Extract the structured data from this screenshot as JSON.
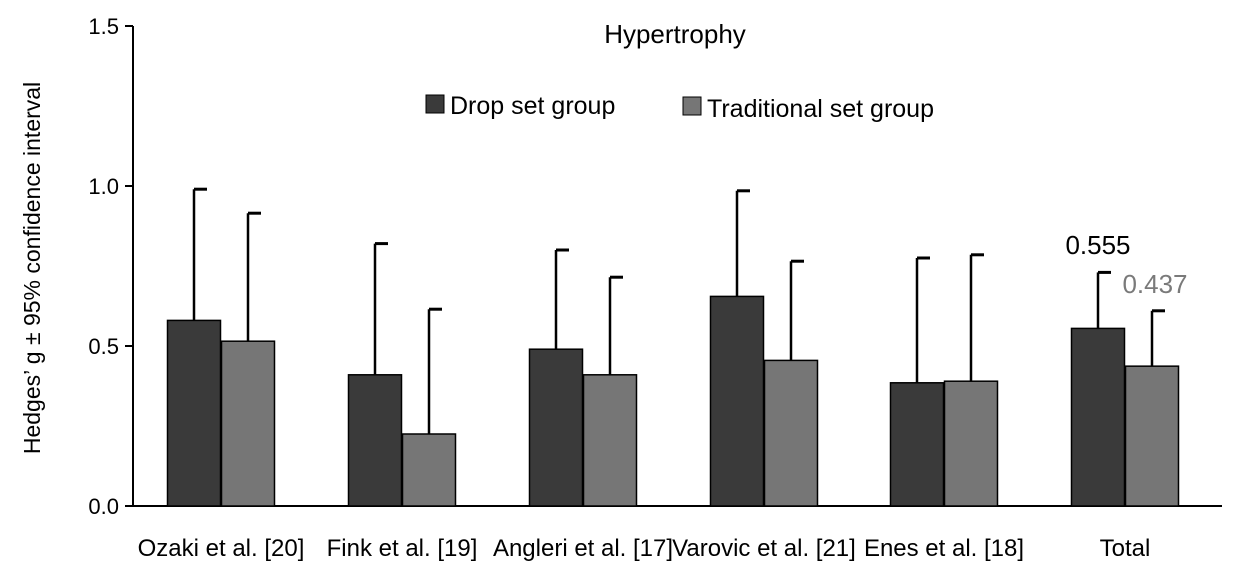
{
  "chart_data": {
    "type": "bar",
    "title": "Hypertrophy",
    "ylabel": "Hedges’ g ± 95% confidence interval",
    "xlabel": "",
    "ylim": [
      0.0,
      1.5
    ],
    "yticks": [
      0.0,
      0.5,
      1.0,
      1.5
    ],
    "ytick_labels": [
      "0.0",
      "0.5",
      "1.0",
      "1.5"
    ],
    "grid": false,
    "legend_position": "top-center",
    "categories": [
      "Ozaki et al. [20]",
      "Fink et al. [19]",
      "Angleri et al. [17]",
      "Varovic et al. [21]",
      "Enes et al. [18]",
      "Total"
    ],
    "series": [
      {
        "name": "Drop set group",
        "color": "#3a3a3a",
        "values": [
          0.58,
          0.41,
          0.49,
          0.655,
          0.385,
          0.555
        ],
        "upper_ci": [
          0.99,
          0.82,
          0.8,
          0.985,
          0.775,
          0.73
        ]
      },
      {
        "name": "Traditional set group",
        "color": "#767676",
        "values": [
          0.515,
          0.225,
          0.41,
          0.455,
          0.39,
          0.437
        ],
        "upper_ci": [
          0.915,
          0.615,
          0.715,
          0.765,
          0.785,
          0.61
        ]
      }
    ],
    "annotations": [
      {
        "text": "0.555",
        "series": 0,
        "category": "Total",
        "color": "#000000"
      },
      {
        "text": "0.437",
        "series": 1,
        "category": "Total",
        "color": "#7a7a7a"
      }
    ]
  }
}
